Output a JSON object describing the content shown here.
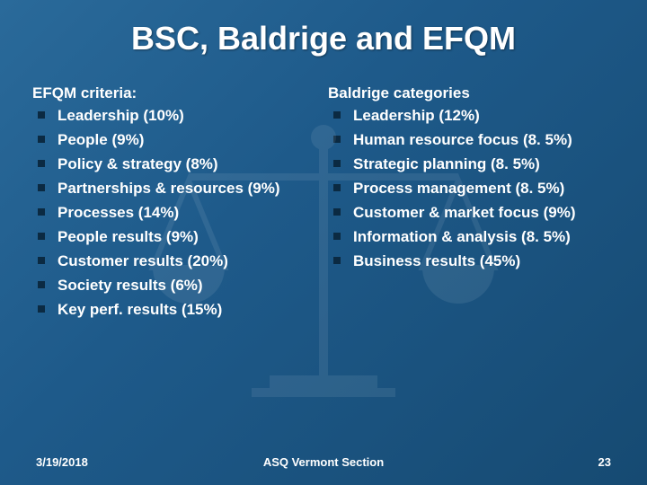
{
  "title": "BSC, Baldrige and EFQM",
  "left": {
    "header": "EFQM criteria:",
    "items": [
      "Leadership (10%)",
      "People (9%)",
      "Policy & strategy (8%)",
      "Partnerships & resources (9%)",
      "Processes (14%)",
      "People results (9%)",
      "Customer results (20%)",
      "Society results (6%)",
      "Key perf. results (15%)"
    ]
  },
  "right": {
    "header": "Baldrige categories",
    "items": [
      "Leadership (12%)",
      "Human resource focus (8. 5%)",
      "Strategic planning (8. 5%)",
      "Process management (8. 5%)",
      "Customer & market focus (9%)",
      "Information & analysis (8. 5%)",
      "Business results (45%)"
    ]
  },
  "footer": {
    "date": "3/19/2018",
    "section": "ASQ Vermont Section",
    "page": "23"
  },
  "colors": {
    "bullet": "#0b2a42",
    "text": "#ffffff"
  }
}
